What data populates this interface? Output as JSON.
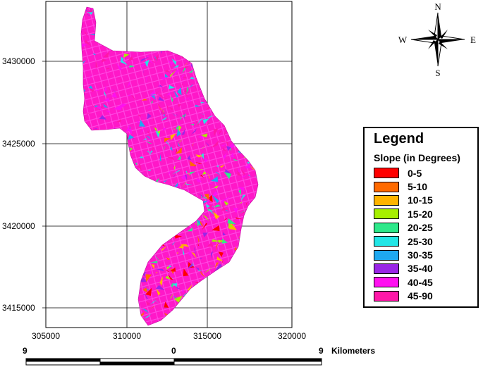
{
  "map": {
    "x_ticks": [
      "305000",
      "310000",
      "315000",
      "320000"
    ],
    "y_ticks": [
      "3430000",
      "3425000",
      "3420000",
      "3415000"
    ]
  },
  "compass": {
    "north": "N",
    "south": "S",
    "east": "E",
    "west": "W"
  },
  "legend": {
    "title": "Legend",
    "subtitle": "Slope (in Degrees)",
    "items": [
      {
        "label": "0-5",
        "color": "#ff0000"
      },
      {
        "label": "5-10",
        "color": "#ff6a00"
      },
      {
        "label": "10-15",
        "color": "#ffb400"
      },
      {
        "label": "15-20",
        "color": "#a6f000"
      },
      {
        "label": "20-25",
        "color": "#2ee88a"
      },
      {
        "label": "25-30",
        "color": "#22e6e6"
      },
      {
        "label": "30-35",
        "color": "#1ea8f0"
      },
      {
        "label": "35-40",
        "color": "#9a26e6"
      },
      {
        "label": "40-45",
        "color": "#ff10f0"
      },
      {
        "label": "45-90",
        "color": "#ff18a8"
      }
    ]
  },
  "scale_bar": {
    "left_label": "9",
    "middle_label": "0",
    "right_label": "9",
    "unit": "Kilometers"
  }
}
